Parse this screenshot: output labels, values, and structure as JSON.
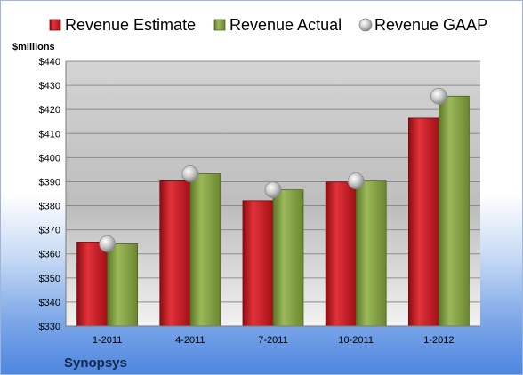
{
  "chart_data": {
    "type": "bar",
    "categories": [
      "1-2011",
      "4-2011",
      "7-2011",
      "10-2011",
      "1-2012"
    ],
    "series": [
      {
        "name": "Revenue Estimate",
        "kind": "bar",
        "color": "#c0141c",
        "values": [
          364.9,
          390.4,
          382.1,
          389.9,
          416.4
        ]
      },
      {
        "name": "Revenue Actual",
        "kind": "bar",
        "color": "#7e9a3c",
        "values": [
          364.2,
          393.3,
          386.6,
          390.3,
          425.5
        ]
      },
      {
        "name": "Revenue GAAP",
        "kind": "marker",
        "color": "#b8b8b8",
        "values": [
          364.2,
          393.3,
          386.6,
          390.3,
          425.5
        ]
      }
    ],
    "ylabel": "$millions",
    "ylim": [
      330,
      440
    ],
    "yticks": [
      330,
      340,
      350,
      360,
      370,
      380,
      390,
      400,
      410,
      420,
      430,
      440
    ],
    "ytick_labels": [
      "$330",
      "$340",
      "$350",
      "$360",
      "$370",
      "$380",
      "$390",
      "$400",
      "$410",
      "$420",
      "$430",
      "$440"
    ],
    "grid": true,
    "legend_position": "top"
  },
  "company": "Synopsys"
}
